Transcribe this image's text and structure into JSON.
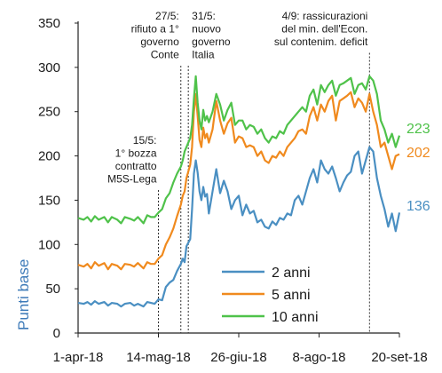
{
  "chart_data": {
    "type": "line",
    "ylabel": "Punti base",
    "ylim": [
      0,
      350
    ],
    "yticks": [
      "0",
      "50",
      "100",
      "150",
      "200",
      "250",
      "300",
      "350"
    ],
    "xlabels": [
      "1-apr-18",
      "14-mag-18",
      "26-giu-18",
      "8-ago-18",
      "20-set-18"
    ],
    "xlabel_days": [
      0,
      43,
      86,
      129,
      172
    ],
    "grid": false,
    "legend": "bottom-center",
    "x": [
      0,
      3,
      5,
      7,
      9,
      11,
      14,
      16,
      18,
      21,
      23,
      25,
      28,
      30,
      32,
      35,
      37,
      39,
      41,
      43,
      45,
      47,
      49,
      51,
      53,
      55,
      56,
      57,
      58,
      60,
      61,
      62,
      63,
      64,
      65,
      66,
      67,
      68,
      69,
      70,
      72,
      74,
      76,
      78,
      80,
      82,
      84,
      86,
      88,
      90,
      92,
      94,
      96,
      98,
      100,
      102,
      104,
      106,
      108,
      110,
      112,
      114,
      116,
      118,
      120,
      122,
      124,
      126,
      128,
      130,
      132,
      134,
      136,
      138,
      140,
      142,
      144,
      146,
      148,
      150,
      152,
      154,
      156,
      158,
      160,
      162,
      164,
      166,
      168,
      170,
      172
    ],
    "series": [
      {
        "name": "2 anni",
        "color": "#4a8fc2",
        "end_label": "136",
        "values": [
          34,
          33,
          35,
          32,
          36,
          33,
          35,
          31,
          34,
          33,
          30,
          33,
          34,
          31,
          33,
          30,
          35,
          34,
          33,
          38,
          37,
          52,
          57,
          60,
          70,
          78,
          84,
          80,
          98,
          106,
          140,
          180,
          195,
          181,
          160,
          150,
          165,
          154,
          157,
          135,
          160,
          185,
          158,
          172,
          160,
          140,
          150,
          155,
          133,
          145,
          135,
          138,
          125,
          128,
          120,
          118,
          126,
          122,
          130,
          128,
          135,
          133,
          150,
          155,
          145,
          160,
          175,
          185,
          170,
          195,
          185,
          180,
          188,
          175,
          160,
          170,
          178,
          182,
          200,
          205,
          180,
          195,
          210,
          205,
          175,
          155,
          140,
          120,
          135,
          115,
          136
        ]
      },
      {
        "name": "5 anni",
        "color": "#f08a1e",
        "end_label": "202",
        "values": [
          77,
          75,
          78,
          73,
          80,
          76,
          79,
          72,
          78,
          76,
          72,
          78,
          77,
          75,
          79,
          73,
          80,
          78,
          78,
          84,
          88,
          100,
          108,
          118,
          132,
          145,
          155,
          160,
          175,
          190,
          210,
          250,
          270,
          245,
          218,
          210,
          232,
          220,
          225,
          215,
          230,
          262,
          240,
          225,
          237,
          243,
          215,
          222,
          220,
          210,
          212,
          210,
          200,
          205,
          195,
          192,
          200,
          198,
          205,
          200,
          210,
          215,
          220,
          228,
          230,
          225,
          245,
          255,
          240,
          258,
          250,
          262,
          268,
          240,
          262,
          265,
          268,
          272,
          255,
          265,
          260,
          250,
          270,
          250,
          235,
          210,
          215,
          200,
          185,
          200,
          202
        ]
      },
      {
        "name": "10 anni",
        "color": "#4fc24a",
        "end_label": "223",
        "values": [
          130,
          128,
          131,
          126,
          132,
          128,
          131,
          125,
          131,
          128,
          124,
          131,
          129,
          127,
          131,
          124,
          133,
          131,
          131,
          136,
          140,
          152,
          158,
          170,
          180,
          188,
          195,
          205,
          210,
          220,
          235,
          265,
          290,
          260,
          240,
          230,
          252,
          240,
          245,
          238,
          250,
          270,
          258,
          240,
          252,
          260,
          235,
          240,
          240,
          230,
          235,
          233,
          225,
          230,
          220,
          215,
          222,
          220,
          228,
          225,
          235,
          240,
          245,
          250,
          255,
          250,
          268,
          275,
          258,
          280,
          272,
          280,
          285,
          268,
          280,
          282,
          285,
          288,
          270,
          280,
          282,
          275,
          290,
          285,
          270,
          240,
          230,
          215,
          225,
          210,
          223
        ]
      }
    ],
    "annotations": [
      {
        "x": 43,
        "lines": [
          "15/5:",
          "1° bozza",
          "contratto",
          "M5S-Lega"
        ]
      },
      {
        "x": 55,
        "lines": [
          "27/5:",
          "rifiuto a 1°",
          "governo",
          "Conte"
        ]
      },
      {
        "x": 59,
        "lines": [
          "31/5:",
          "nuovo",
          "governo",
          "Italia"
        ]
      },
      {
        "x": 156,
        "lines": [
          "4/9: rassicurazioni",
          "del min. dell'Econ.",
          "sul contenim. deficit"
        ]
      }
    ]
  }
}
